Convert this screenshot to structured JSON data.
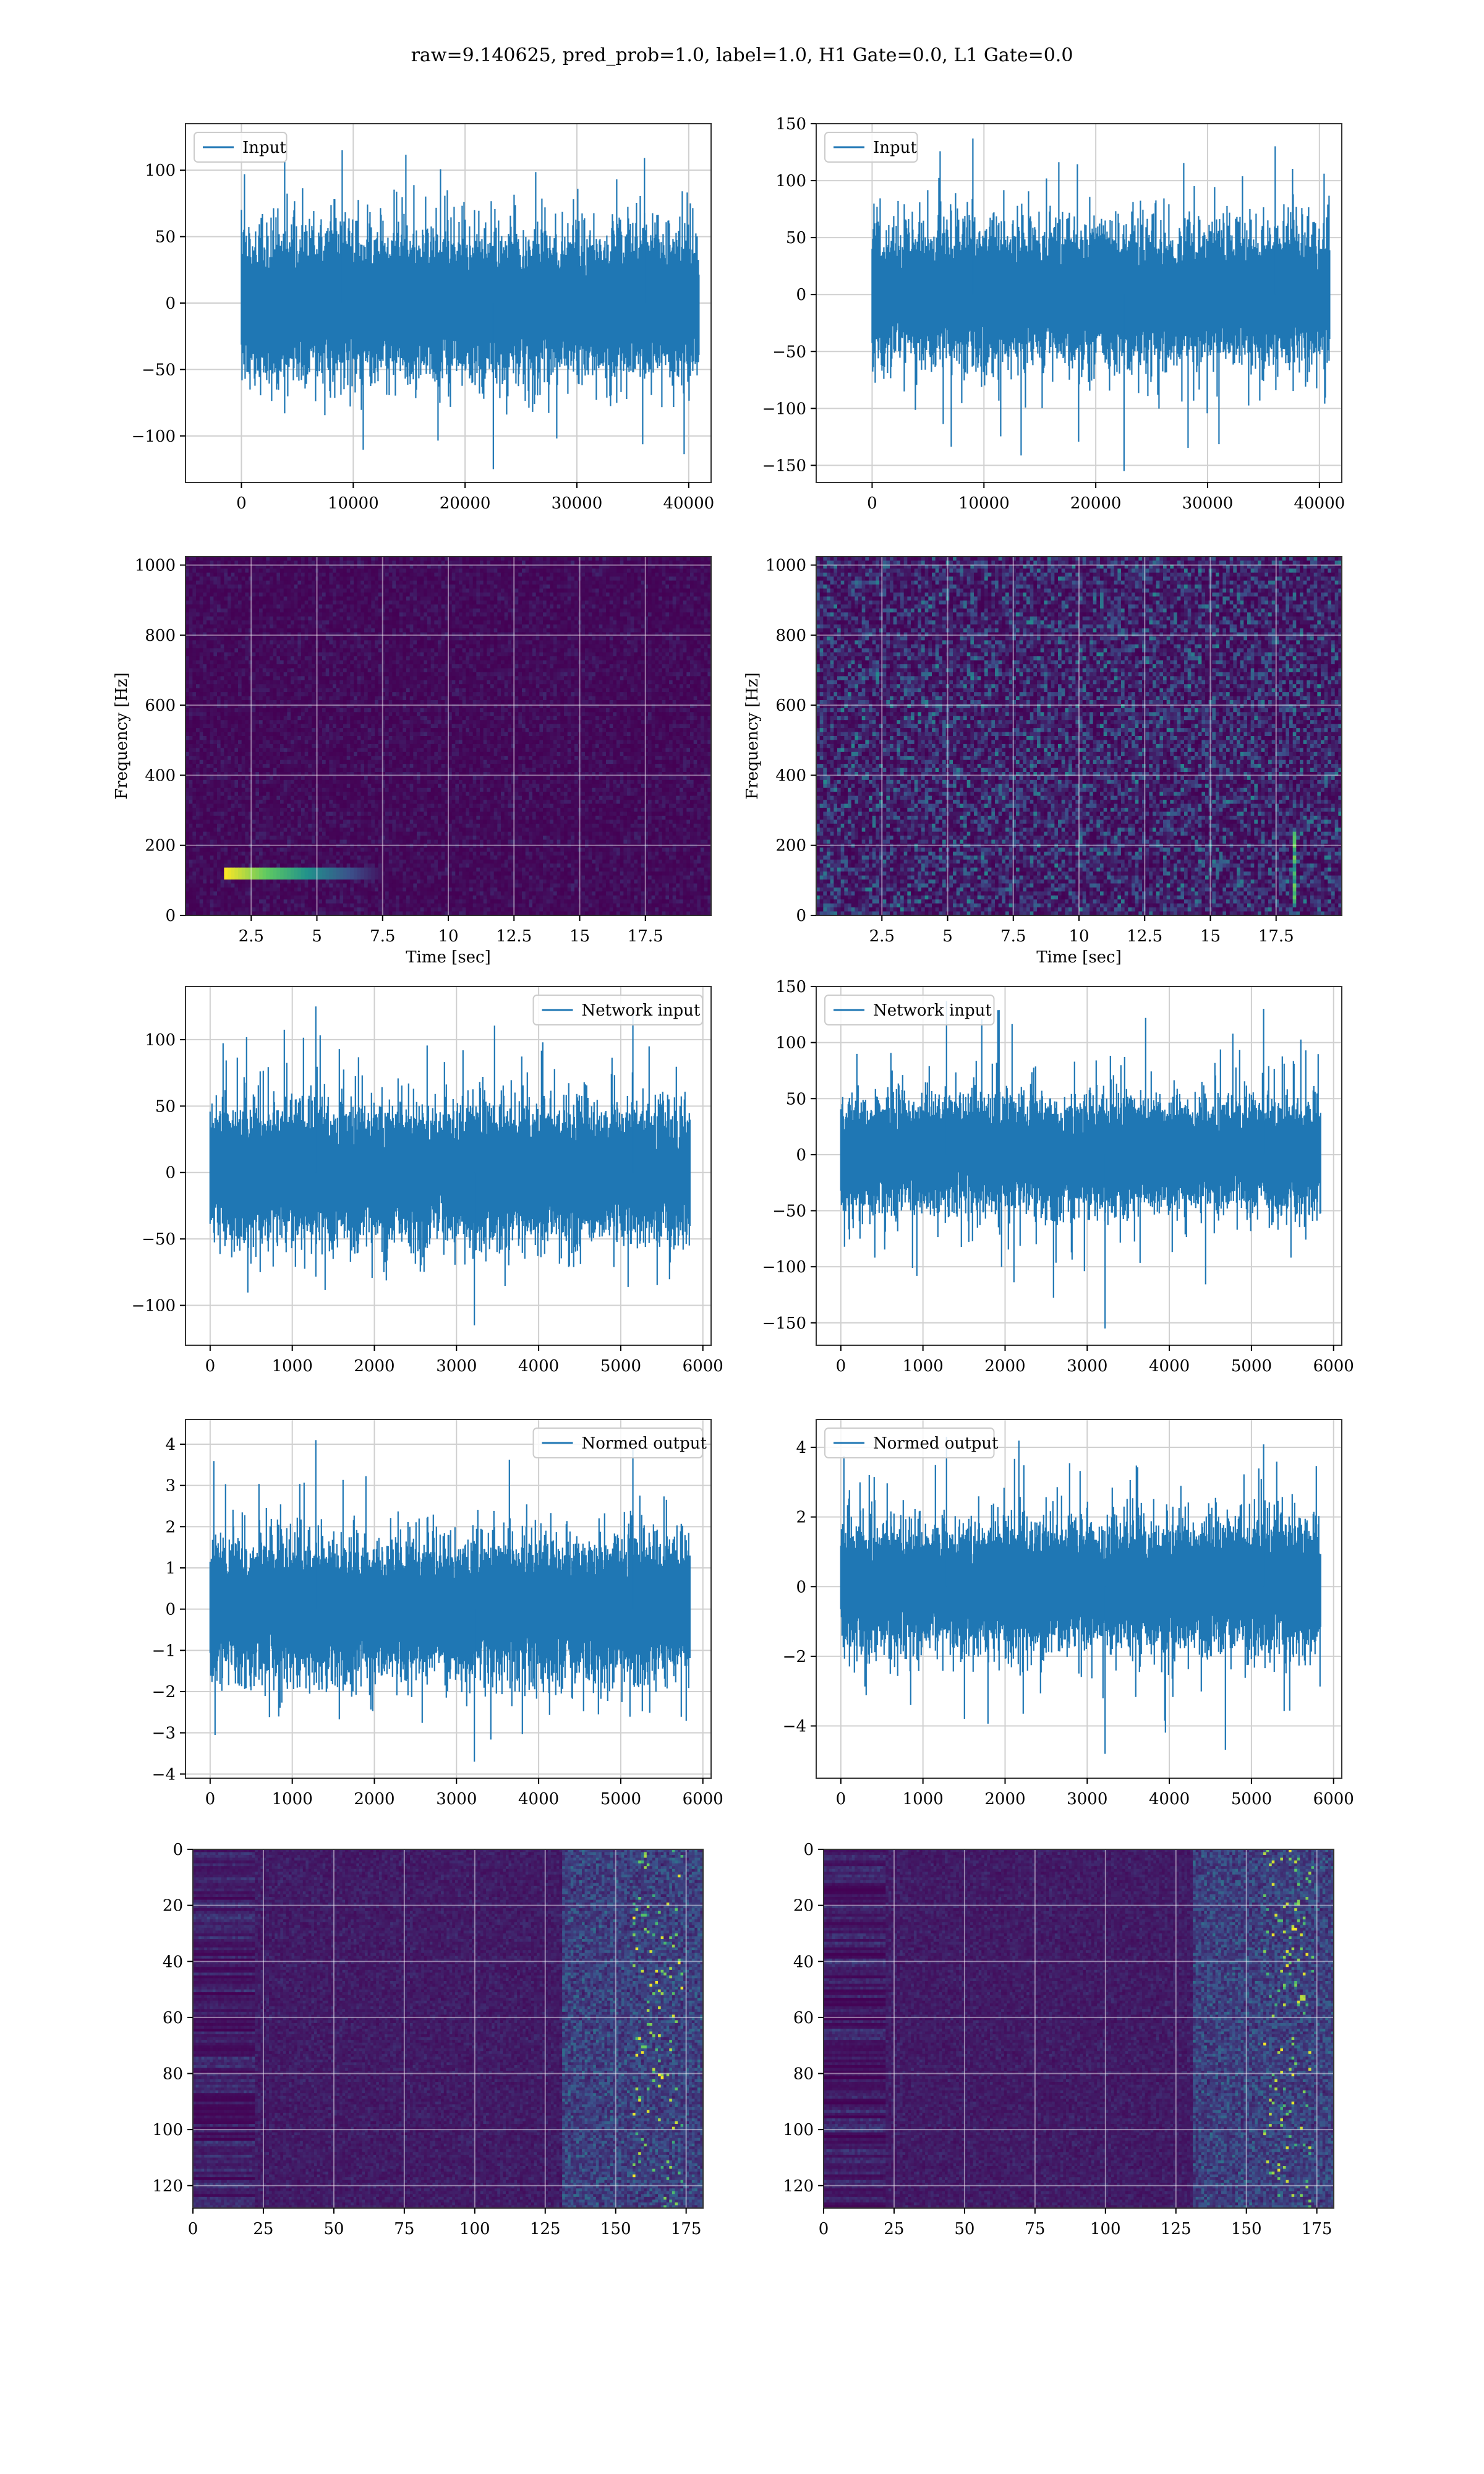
{
  "figure": {
    "suptitle": "raw=9.140625, pred_prob=1.0, label=1.0, H1 Gate=0.0, L1 Gate=0.0"
  },
  "colors": {
    "line": "#1f77b4",
    "grid": "#d0d0d0",
    "cmap_low": "#440154",
    "cmap_high": "#fde725"
  },
  "chart_data": [
    {
      "id": "h1-input",
      "type": "line",
      "legend": "Input",
      "legend_loc": "upper left",
      "grid": true,
      "xlim": [
        -5000,
        42000
      ],
      "ylim": [
        -135,
        135
      ],
      "xticks": [
        0,
        10000,
        20000,
        30000,
        40000
      ],
      "yticks": [
        -100,
        -50,
        0,
        50,
        100
      ],
      "n_points": 40960,
      "y_core": 60,
      "y_peak_max": 115,
      "y_peak_min": -125,
      "seed": 11
    },
    {
      "id": "l1-input",
      "type": "line",
      "legend": "Input",
      "legend_loc": "upper left",
      "grid": true,
      "xlim": [
        -5000,
        42000
      ],
      "ylim": [
        -165,
        150
      ],
      "xticks": [
        0,
        10000,
        20000,
        30000,
        40000
      ],
      "yticks": [
        -150,
        -100,
        -50,
        0,
        50,
        100,
        150
      ],
      "n_points": 40960,
      "y_core": 65,
      "y_peak_max": 137,
      "y_peak_min": -155,
      "seed": 23
    },
    {
      "id": "h1-spectrogram",
      "type": "heatmap",
      "xlabel": "Time [sec]",
      "ylabel": "Frequency [Hz]",
      "grid": true,
      "xlim": [
        0,
        20
      ],
      "ylim": [
        0,
        1024
      ],
      "xticks": [
        2.5,
        5.0,
        7.5,
        10.0,
        12.5,
        15.0,
        17.5
      ],
      "yticks": [
        0,
        200,
        400,
        600,
        800,
        1000
      ],
      "noise_level": 0.08,
      "features": [
        {
          "kind": "hline",
          "x0": 1.5,
          "x1": 7.5,
          "y": 120,
          "peak": 1.0
        }
      ],
      "seed": 5
    },
    {
      "id": "l1-spectrogram",
      "type": "heatmap",
      "xlabel": "Time [sec]",
      "ylabel": "Frequency [Hz]",
      "grid": true,
      "xlim": [
        0,
        20
      ],
      "ylim": [
        0,
        1024
      ],
      "xticks": [
        2.5,
        5.0,
        7.5,
        10.0,
        12.5,
        15.0,
        17.5
      ],
      "yticks": [
        0,
        200,
        400,
        600,
        800,
        1000
      ],
      "noise_level": 0.3,
      "features": [
        {
          "kind": "vline",
          "x": 18.2,
          "y0": 20,
          "y1": 240,
          "peak": 0.8
        }
      ],
      "seed": 9
    },
    {
      "id": "h1-network-input",
      "type": "line",
      "legend": "Network input",
      "legend_loc": "upper right",
      "grid": true,
      "xlim": [
        -300,
        6100
      ],
      "ylim": [
        -130,
        140
      ],
      "xticks": [
        0,
        1000,
        2000,
        3000,
        4000,
        5000,
        6000
      ],
      "yticks": [
        -100,
        -50,
        0,
        50,
        100
      ],
      "n_points": 5850,
      "y_core": 55,
      "y_peak_max": 125,
      "y_peak_min": -115,
      "seed": 31
    },
    {
      "id": "l1-network-input",
      "type": "line",
      "legend": "Network input",
      "legend_loc": "upper left",
      "grid": true,
      "xlim": [
        -300,
        6100
      ],
      "ylim": [
        -170,
        150
      ],
      "xticks": [
        0,
        1000,
        2000,
        3000,
        4000,
        5000,
        6000
      ],
      "yticks": [
        -150,
        -100,
        -50,
        0,
        50,
        100,
        150
      ],
      "n_points": 5850,
      "y_core": 55,
      "y_peak_max": 137,
      "y_peak_min": -155,
      "seed": 37
    },
    {
      "id": "h1-normed-output",
      "type": "line",
      "legend": "Normed output",
      "legend_loc": "upper right",
      "grid": true,
      "xlim": [
        -300,
        6100
      ],
      "ylim": [
        -4.1,
        4.6
      ],
      "xticks": [
        0,
        1000,
        2000,
        3000,
        4000,
        5000,
        6000
      ],
      "yticks": [
        -4,
        -3,
        -2,
        -1,
        0,
        1,
        2,
        3,
        4
      ],
      "n_points": 5850,
      "y_core": 1.8,
      "y_peak_max": 4.1,
      "y_peak_min": -3.7,
      "seed": 41
    },
    {
      "id": "l1-normed-output",
      "type": "line",
      "legend": "Normed output",
      "legend_loc": "upper left",
      "grid": true,
      "xlim": [
        -300,
        6100
      ],
      "ylim": [
        -5.5,
        4.8
      ],
      "xticks": [
        0,
        1000,
        2000,
        3000,
        4000,
        5000,
        6000
      ],
      "yticks": [
        -4,
        -2,
        0,
        2,
        4
      ],
      "n_points": 5850,
      "y_core": 2.0,
      "y_peak_max": 4.3,
      "y_peak_min": -4.8,
      "seed": 43
    },
    {
      "id": "h1-feature-map",
      "type": "heatmap",
      "grid": true,
      "y_inverted": true,
      "xlim": [
        0,
        181
      ],
      "ylim": [
        0,
        128
      ],
      "xticks": [
        0,
        25,
        50,
        75,
        100,
        125,
        150,
        175
      ],
      "yticks": [
        0,
        20,
        40,
        60,
        80,
        100,
        120
      ],
      "rows": 128,
      "cols": 181,
      "seed": 51
    },
    {
      "id": "l1-feature-map",
      "type": "heatmap",
      "grid": true,
      "y_inverted": true,
      "xlim": [
        0,
        181
      ],
      "ylim": [
        0,
        128
      ],
      "xticks": [
        0,
        25,
        50,
        75,
        100,
        125,
        150,
        175
      ],
      "yticks": [
        0,
        20,
        40,
        60,
        80,
        100,
        120
      ],
      "rows": 128,
      "cols": 181,
      "seed": 57
    }
  ]
}
